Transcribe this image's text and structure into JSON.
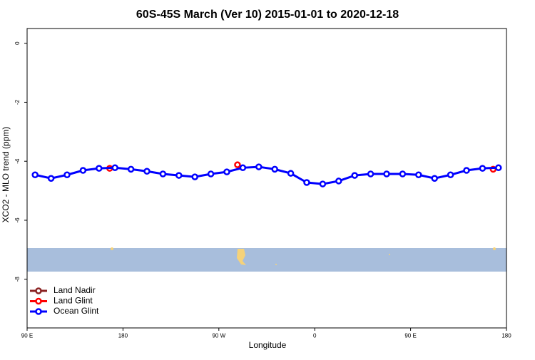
{
  "chart_data": {
    "type": "line",
    "title": "60S-45S March (Ver 10)   2015-01-01 to 2020-12-18",
    "x_label": "Longitude",
    "y_label": "XCO2 - MLO trend (ppm)",
    "xlim": [
      90,
      540
    ],
    "xticks": [
      {
        "value": 90,
        "label": "90 E"
      },
      {
        "value": 180,
        "label": "180"
      },
      {
        "value": 270,
        "label": "90 W"
      },
      {
        "value": 360,
        "label": "0"
      },
      {
        "value": 450,
        "label": "90 E"
      },
      {
        "value": 540,
        "label": "180"
      }
    ],
    "ylim": [
      -9.65,
      0.5
    ],
    "yticks": [
      0,
      -2,
      -4,
      -6,
      -8
    ],
    "legend": "bottom-left",
    "series": [
      {
        "name": "Land Nadir",
        "color": "#8b2323",
        "x": [],
        "values": []
      },
      {
        "name": "Land Glint",
        "color": "#ff0000",
        "x": [
          167.5,
          287.5,
          527.5
        ],
        "values": [
          -4.24,
          -4.12,
          -4.27
        ]
      },
      {
        "name": "Ocean Glint",
        "color": "#0000ff",
        "x": [
          97.5,
          112.5,
          127.5,
          142.5,
          157.5,
          172.5,
          187.5,
          202.5,
          217.5,
          232.5,
          247.5,
          262.5,
          277.5,
          292.5,
          307.5,
          322.5,
          337.5,
          352.5,
          367.5,
          382.5,
          397.5,
          412.5,
          427.5,
          442.5,
          457.5,
          472.5,
          487.5,
          502.5,
          517.5,
          532.5
        ],
        "values": [
          -4.46,
          -4.58,
          -4.46,
          -4.31,
          -4.24,
          -4.22,
          -4.27,
          -4.34,
          -4.43,
          -4.48,
          -4.53,
          -4.43,
          -4.36,
          -4.22,
          -4.19,
          -4.27,
          -4.41,
          -4.72,
          -4.77,
          -4.67,
          -4.48,
          -4.43,
          -4.43,
          -4.43,
          -4.46,
          -4.58,
          -4.46,
          -4.31,
          -4.24,
          -4.22
        ]
      }
    ]
  }
}
